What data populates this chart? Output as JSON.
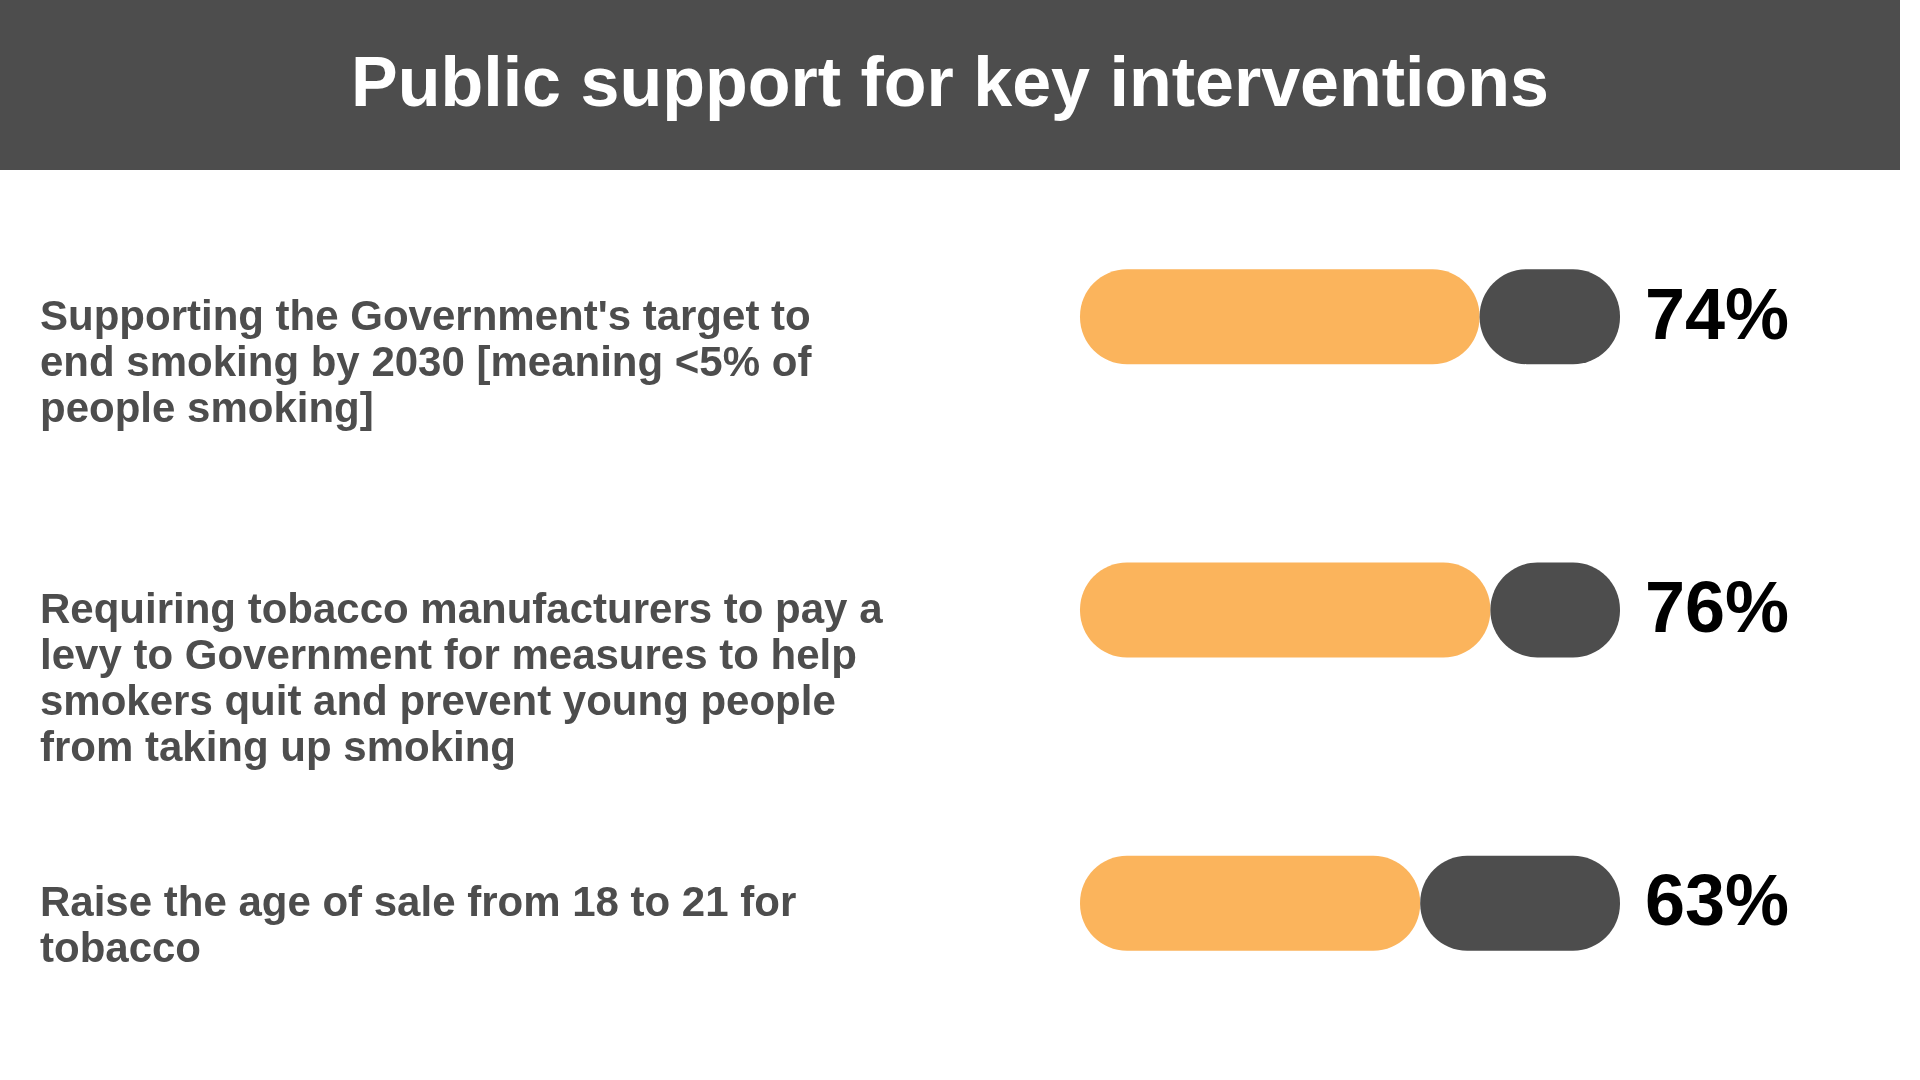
{
  "chart_data": {
    "type": "bar",
    "orientation": "horizontal",
    "stacked": true,
    "title": "Public support for key interventions",
    "categories": [
      "Supporting the Government's target to end smoking by 2030 [meaning <5% of people smoking]",
      "Requiring tobacco manufacturers to pay a levy to Government for measures to help smokers quit and prevent young people from taking up smoking",
      "Raise the age of sale from 18 to 21 for tobacco"
    ],
    "series": [
      {
        "color": "#fbb45c",
        "values": [
          74,
          76,
          63
        ],
        "value_labels": [
          "74%",
          "76%",
          "63%"
        ]
      },
      {
        "color": "#4d4d4d",
        "values": [
          26,
          24,
          37
        ]
      }
    ],
    "xlim": [
      0,
      100
    ],
    "tick_labels": false
  }
}
